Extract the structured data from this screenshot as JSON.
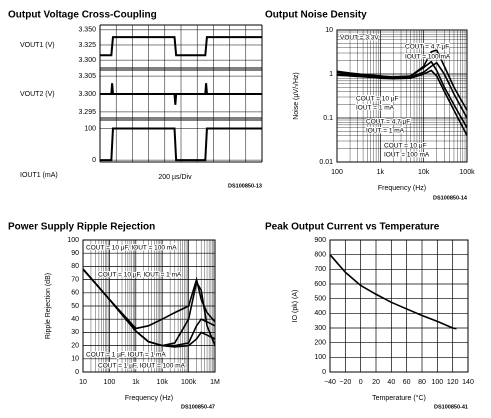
{
  "chart_data": [
    {
      "type": "scope",
      "title": "Output Voltage Cross-Coupling",
      "x_label": "200 µs/Div",
      "code": "DS100850-13",
      "x": [
        0,
        0.7,
        0.75,
        0.8,
        4.6,
        4.65,
        4.7,
        6.5,
        6.55,
        6.6,
        10
      ],
      "xlim": [
        0,
        10
      ],
      "x_divisions": 10,
      "color": "#000000",
      "grid": true,
      "panels": [
        {
          "label": "VOUT1 (V)",
          "ylim": [
            3.287,
            3.358
          ],
          "yticks": [
            {
              "value": 3.35,
              "label": "3.350"
            },
            {
              "value": 3.325,
              "label": "3.325"
            },
            {
              "value": 3.3,
              "label": "3.300"
            }
          ],
          "values": [
            3.308,
            3.308,
            3.323,
            3.338,
            3.338,
            3.323,
            3.308,
            3.308,
            3.323,
            3.338,
            3.338
          ]
        },
        {
          "label": "VOUT2 (V)",
          "ylim": [
            3.2933,
            3.3067
          ],
          "yticks": [
            {
              "value": 3.305,
              "label": "3.305"
            },
            {
              "value": 3.3,
              "label": "3.300"
            },
            {
              "value": 3.295,
              "label": "3.295"
            }
          ],
          "values": [
            3.3,
            3.3,
            3.303,
            3.3,
            3.3,
            3.297,
            3.3,
            3.3,
            3.303,
            3.3,
            3.3
          ]
        },
        {
          "label": "IOUT1 (mA)",
          "ylim": [
            -6,
            127
          ],
          "yticks": [
            100,
            0
          ],
          "values": [
            0,
            0,
            50,
            100,
            100,
            50,
            0,
            0,
            50,
            100,
            100
          ]
        }
      ]
    },
    {
      "type": "line",
      "title": "Output Noise Density",
      "x_label": "Frequency (Hz)",
      "y_label": "Noise (µV/√Hz)",
      "code": "DS100850-14",
      "xlog": true,
      "ylog": true,
      "grid": true,
      "xlim": [
        100,
        100000
      ],
      "ylim": [
        0.01,
        10
      ],
      "xticks": [
        100,
        {
          "value": 1000,
          "label": "1k"
        },
        {
          "value": 10000,
          "label": "10k"
        },
        {
          "value": 100000,
          "label": "100k"
        }
      ],
      "yticks": [
        0.01,
        0.1,
        1,
        10
      ],
      "annotations": [
        "VOUT = 3.3V",
        "COUT = 4.7 µF",
        "IOUT = 100 mA",
        "COUT = 10 µF",
        "IOUT = 1 mA",
        "COUT = 4.7 µF",
        "IOUT = 1 mA",
        "COUT = 10 µF",
        "IOUT = 100 mA"
      ],
      "x": [
        100,
        200,
        500,
        1000,
        2000,
        5000,
        10000,
        15000,
        20000,
        30000,
        50000,
        100000
      ],
      "series": [
        {
          "color": "#000000",
          "values": [
            1.1,
            1.0,
            0.95,
            0.9,
            0.85,
            0.9,
            1.5,
            3.2,
            3.5,
            1.5,
            0.5,
            0.15
          ]
        },
        {
          "color": "#000000",
          "values": [
            1.15,
            1.05,
            0.95,
            0.9,
            0.85,
            0.9,
            1.4,
            1.9,
            1.2,
            0.5,
            0.2,
            0.06
          ]
        },
        {
          "color": "#000000",
          "values": [
            1.0,
            0.95,
            0.9,
            0.85,
            0.8,
            0.85,
            1.1,
            1.5,
            1.8,
            1.0,
            0.35,
            0.1
          ]
        },
        {
          "color": "#000000",
          "values": [
            0.95,
            0.9,
            0.85,
            0.8,
            0.78,
            0.8,
            1.0,
            1.2,
            0.9,
            0.4,
            0.15,
            0.04
          ]
        }
      ]
    },
    {
      "type": "line",
      "title": "Power Supply Ripple Rejection",
      "x_label": "Frequency (Hz)",
      "y_label": "Ripple Rejection (dB)",
      "code": "DS100850-47",
      "xlog": true,
      "ylog": false,
      "grid": true,
      "xlim": [
        10,
        1000000
      ],
      "ylim": [
        0,
        100
      ],
      "xticks": [
        10,
        100,
        {
          "value": 1000,
          "label": "1k"
        },
        {
          "value": 10000,
          "label": "10k"
        },
        {
          "value": 100000,
          "label": "100k"
        },
        {
          "value": 1000000,
          "label": "1M"
        }
      ],
      "yticks": [
        0,
        10,
        20,
        30,
        40,
        50,
        60,
        70,
        80,
        90,
        100
      ],
      "annotations": [
        "COUT = 10 µF, IOUT = 100 mA",
        "COUT = 10 µF, IOUT = 1 mA",
        "COUT = 1 µF, IOUT = 1 mA",
        "COUT = 1 µF, IOUT = 100 mA"
      ],
      "x": [
        10,
        100,
        1000,
        3000,
        10000,
        30000,
        100000,
        200000,
        300000,
        500000,
        1000000
      ],
      "series": [
        {
          "color": "#000000",
          "values": [
            78,
            55,
            31,
            23,
            20,
            22,
            40,
            68,
            62,
            35,
            20
          ]
        },
        {
          "color": "#000000",
          "values": [
            78,
            55,
            33,
            35,
            40,
            45,
            50,
            70,
            55,
            45,
            38
          ]
        },
        {
          "color": "#000000",
          "values": [
            78,
            55,
            31,
            23,
            20,
            20,
            22,
            35,
            40,
            38,
            35
          ]
        },
        {
          "color": "#000000",
          "values": [
            78,
            55,
            31,
            23,
            20,
            19,
            20,
            25,
            30,
            28,
            25
          ]
        }
      ]
    },
    {
      "type": "line",
      "title": "Peak Output Current vs Temperature",
      "x_label": "Temperature (°C)",
      "y_label": "IO (pk) (A)",
      "code": "DS100850-41",
      "xlog": false,
      "ylog": false,
      "grid": true,
      "xlim": [
        -40,
        140
      ],
      "ylim": [
        0,
        900
      ],
      "xticks": [
        {
          "value": -40,
          "label": "−40"
        },
        {
          "value": -20,
          "label": "−20"
        },
        0,
        20,
        40,
        60,
        80,
        100,
        120,
        140
      ],
      "yticks": [
        0,
        100,
        200,
        300,
        400,
        500,
        600,
        700,
        800,
        900
      ],
      "x": [
        -40,
        -20,
        0,
        20,
        40,
        60,
        80,
        100,
        120,
        125
      ],
      "series": [
        {
          "color": "#000000",
          "values": [
            800,
            680,
            590,
            530,
            475,
            430,
            385,
            345,
            300,
            295
          ]
        }
      ]
    }
  ]
}
